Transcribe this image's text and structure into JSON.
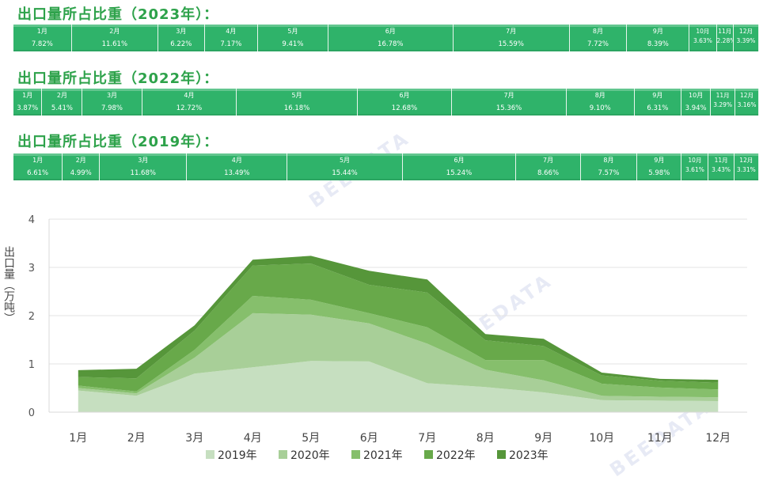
{
  "sections": [
    {
      "title": "出口量所占比重（2023年）：",
      "cells": [
        {
          "month": "1月",
          "pct": "7.82%",
          "value": 7.82
        },
        {
          "month": "2月",
          "pct": "11.61%",
          "value": 11.61
        },
        {
          "month": "3月",
          "pct": "6.22%",
          "value": 6.22
        },
        {
          "month": "4月",
          "pct": "7.17%",
          "value": 7.17
        },
        {
          "month": "5月",
          "pct": "9.41%",
          "value": 9.41
        },
        {
          "month": "6月",
          "pct": "16.78%",
          "value": 16.78
        },
        {
          "month": "7月",
          "pct": "15.59%",
          "value": 15.59
        },
        {
          "month": "8月",
          "pct": "7.72%",
          "value": 7.72
        },
        {
          "month": "9月",
          "pct": "8.39%",
          "value": 8.39
        },
        {
          "month": "10月",
          "pct": "3.63%",
          "value": 3.63
        },
        {
          "month": "11月",
          "pct": "2.28%",
          "value": 2.28
        },
        {
          "month": "12月",
          "pct": "3.39%",
          "value": 3.39
        }
      ]
    },
    {
      "title": "出口量所占比重（2022年）：",
      "cells": [
        {
          "month": "1月",
          "pct": "3.87%",
          "value": 3.87
        },
        {
          "month": "2月",
          "pct": "5.41%",
          "value": 5.41
        },
        {
          "month": "3月",
          "pct": "7.98%",
          "value": 7.98
        },
        {
          "month": "4月",
          "pct": "12.72%",
          "value": 12.72
        },
        {
          "month": "5月",
          "pct": "16.18%",
          "value": 16.18
        },
        {
          "month": "6月",
          "pct": "12.68%",
          "value": 12.68
        },
        {
          "month": "7月",
          "pct": "15.36%",
          "value": 15.36
        },
        {
          "month": "8月",
          "pct": "9.10%",
          "value": 9.1
        },
        {
          "month": "9月",
          "pct": "6.31%",
          "value": 6.31
        },
        {
          "month": "10月",
          "pct": "3.94%",
          "value": 3.94
        },
        {
          "month": "11月",
          "pct": "3.29%",
          "value": 3.29
        },
        {
          "month": "12月",
          "pct": "3.16%",
          "value": 3.16
        }
      ]
    },
    {
      "title": "出口量所占比重（2019年）：",
      "cells": [
        {
          "month": "1月",
          "pct": "6.61%",
          "value": 6.61
        },
        {
          "month": "2月",
          "pct": "4.99%",
          "value": 4.99
        },
        {
          "month": "3月",
          "pct": "11.68%",
          "value": 11.68
        },
        {
          "month": "4月",
          "pct": "13.49%",
          "value": 13.49
        },
        {
          "month": "5月",
          "pct": "15.44%",
          "value": 15.44
        },
        {
          "month": "6月",
          "pct": "15.24%",
          "value": 15.24
        },
        {
          "month": "7月",
          "pct": "8.66%",
          "value": 8.66
        },
        {
          "month": "8月",
          "pct": "7.57%",
          "value": 7.57
        },
        {
          "month": "9月",
          "pct": "5.98%",
          "value": 5.98
        },
        {
          "month": "10月",
          "pct": "3.61%",
          "value": 3.61
        },
        {
          "month": "11月",
          "pct": "3.43%",
          "value": 3.43
        },
        {
          "month": "12月",
          "pct": "3.31%",
          "value": 3.31
        }
      ]
    }
  ],
  "chart_data": {
    "type": "area",
    "stacked": true,
    "categories": [
      "1月",
      "2月",
      "3月",
      "4月",
      "5月",
      "6月",
      "7月",
      "8月",
      "9月",
      "10月",
      "11月",
      "12月"
    ],
    "ylabel": "出口量（万吨）",
    "ylim": [
      0,
      4
    ],
    "yticks": [
      0,
      1,
      2,
      3,
      4
    ],
    "grid": true,
    "legend": "bottom",
    "series": [
      {
        "name": "2019年",
        "color": "#c6dfc0",
        "values": [
          0.45,
          0.34,
          0.8,
          0.93,
          1.06,
          1.05,
          0.6,
          0.52,
          0.41,
          0.25,
          0.24,
          0.23
        ]
      },
      {
        "name": "2020年",
        "color": "#a8cf98",
        "values": [
          0.05,
          0.05,
          0.33,
          1.12,
          0.96,
          0.79,
          0.82,
          0.36,
          0.25,
          0.09,
          0.08,
          0.08
        ]
      },
      {
        "name": "2021年",
        "color": "#86bf6c",
        "values": [
          0.05,
          0.04,
          0.16,
          0.36,
          0.31,
          0.21,
          0.34,
          0.2,
          0.42,
          0.25,
          0.19,
          0.16
        ]
      },
      {
        "name": "2022年",
        "color": "#68a94a",
        "values": [
          0.18,
          0.27,
          0.4,
          0.63,
          0.75,
          0.59,
          0.72,
          0.41,
          0.29,
          0.17,
          0.14,
          0.14
        ]
      },
      {
        "name": "2023年",
        "color": "#56963a",
        "values": [
          0.14,
          0.2,
          0.11,
          0.12,
          0.16,
          0.29,
          0.27,
          0.13,
          0.15,
          0.06,
          0.04,
          0.06
        ]
      }
    ]
  }
}
